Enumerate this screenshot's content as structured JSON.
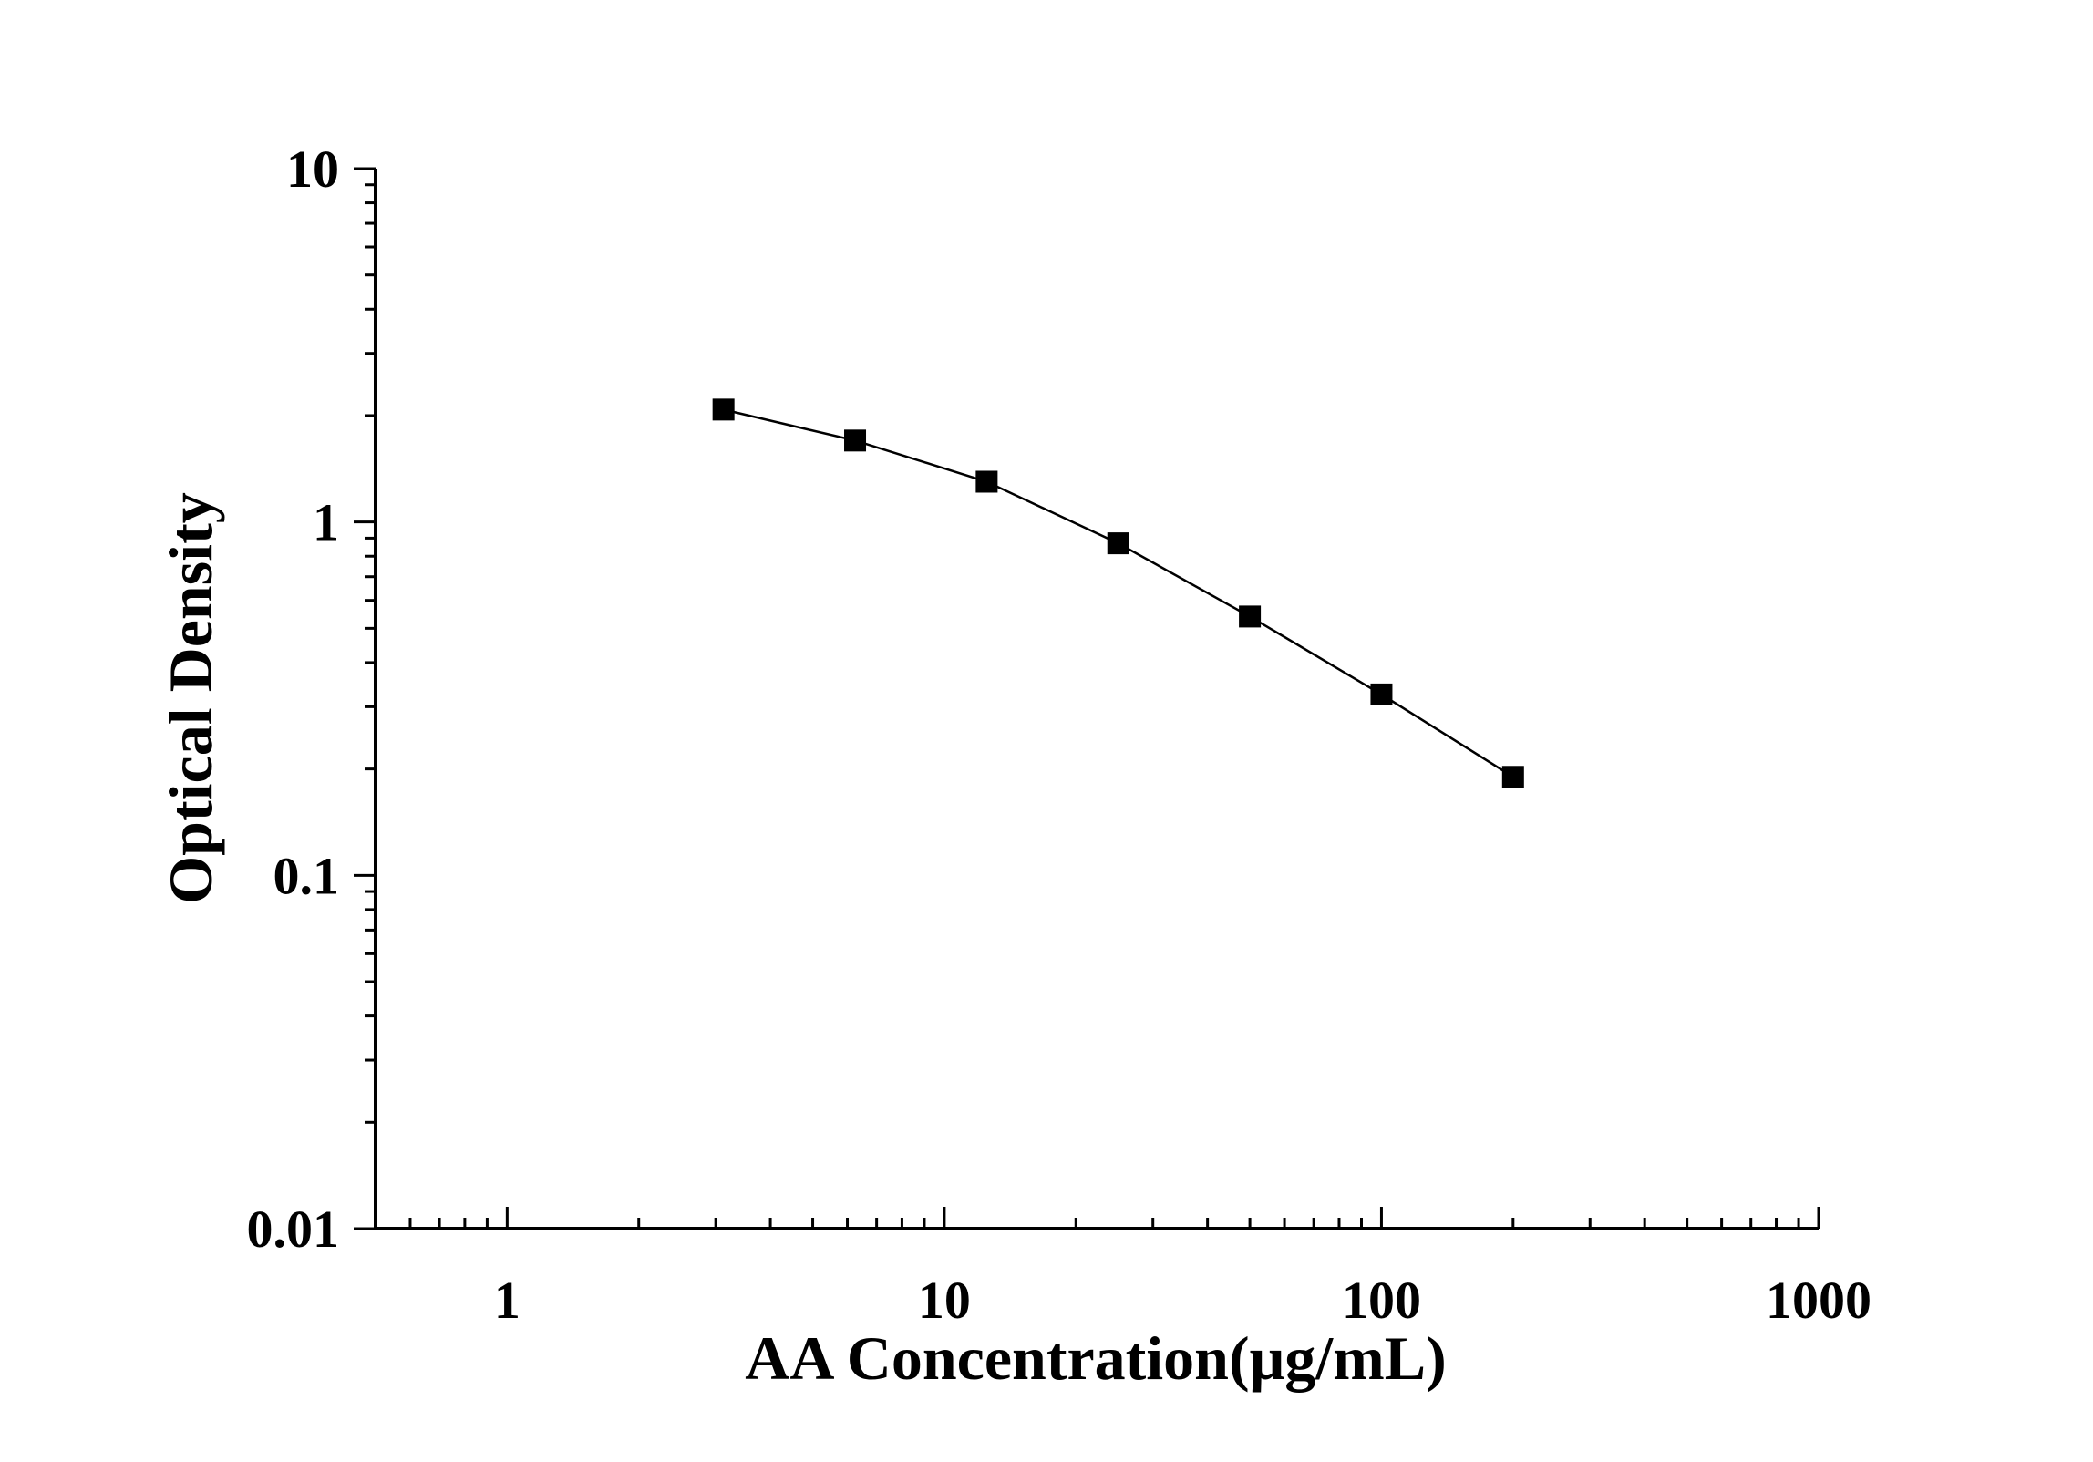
{
  "chart_data": {
    "type": "line",
    "xlabel": "AA Concentration(μg/mL)",
    "ylabel": "Optical Density",
    "xscale": "log",
    "yscale": "log",
    "xlim": [
      0.5,
      1000
    ],
    "ylim": [
      0.01,
      10
    ],
    "x_ticks": [
      1,
      10,
      100,
      1000
    ],
    "x_tick_labels": [
      "1",
      "10",
      "100",
      "1000"
    ],
    "y_ticks": [
      0.01,
      0.1,
      1,
      10
    ],
    "y_tick_labels": [
      "0.01",
      "0.1",
      "1",
      "10"
    ],
    "grid": false,
    "legend": "none",
    "marker": "square",
    "color": "#000000",
    "series": [
      {
        "x": [
          3.125,
          6.25,
          12.5,
          25,
          50,
          100,
          200
        ],
        "y": [
          2.08,
          1.7,
          1.3,
          0.87,
          0.54,
          0.325,
          0.19
        ]
      }
    ]
  }
}
